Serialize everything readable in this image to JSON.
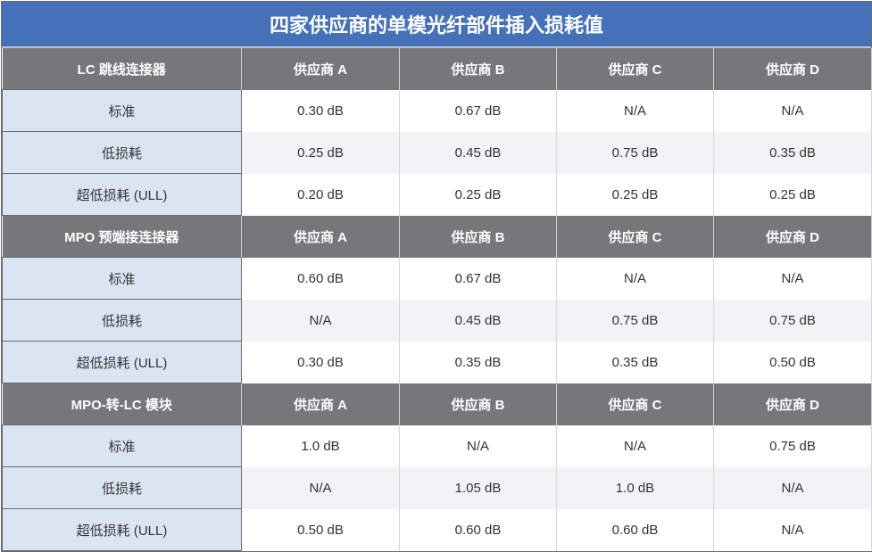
{
  "title": "四家供应商的单模光纤部件插入损耗值",
  "sections": [
    {
      "name": "LC 跳线连接器",
      "vendors": [
        "供应商 A",
        "供应商 B",
        "供应商 C",
        "供应商 D"
      ],
      "rows": [
        {
          "label": "标准",
          "values": [
            "0.30 dB",
            "0.67 dB",
            "N/A",
            "N/A"
          ]
        },
        {
          "label": "低损耗",
          "values": [
            "0.25 dB",
            "0.45 dB",
            "0.75 dB",
            "0.35 dB"
          ]
        },
        {
          "label": "超低损耗 (ULL)",
          "values": [
            "0.20 dB",
            "0.25 dB",
            "0.25 dB",
            "0.25 dB"
          ]
        }
      ]
    },
    {
      "name": "MPO 预端接连接器",
      "vendors": [
        "供应商 A",
        "供应商 B",
        "供应商 C",
        "供应商 D"
      ],
      "rows": [
        {
          "label": "标准",
          "values": [
            "0.60 dB",
            "0.67 dB",
            "N/A",
            "N/A"
          ]
        },
        {
          "label": "低损耗",
          "values": [
            "N/A",
            "0.45 dB",
            "0.75 dB",
            "0.75 dB"
          ]
        },
        {
          "label": "超低损耗 (ULL)",
          "values": [
            "0.30 dB",
            "0.35 dB",
            "0.35 dB",
            "0.50 dB"
          ]
        }
      ]
    },
    {
      "name": "MPO-转-LC 模块",
      "vendors": [
        "供应商 A",
        "供应商 B",
        "供应商 C",
        "供应商 D"
      ],
      "rows": [
        {
          "label": "标准",
          "values": [
            "1.0 dB",
            "N/A",
            "N/A",
            "0.75 dB"
          ]
        },
        {
          "label": "低损耗",
          "values": [
            "N/A",
            "1.05 dB",
            "1.0 dB",
            "N/A"
          ]
        },
        {
          "label": "超低损耗 (ULL)",
          "values": [
            "0.50 dB",
            "0.60 dB",
            "0.60 dB",
            "N/A"
          ]
        }
      ]
    }
  ],
  "colors": {
    "title_bg": "#4571b8",
    "header_bg": "#77777a",
    "label_bg": "#dbe5f2",
    "alt_row_bg": "#f2f3f5"
  }
}
